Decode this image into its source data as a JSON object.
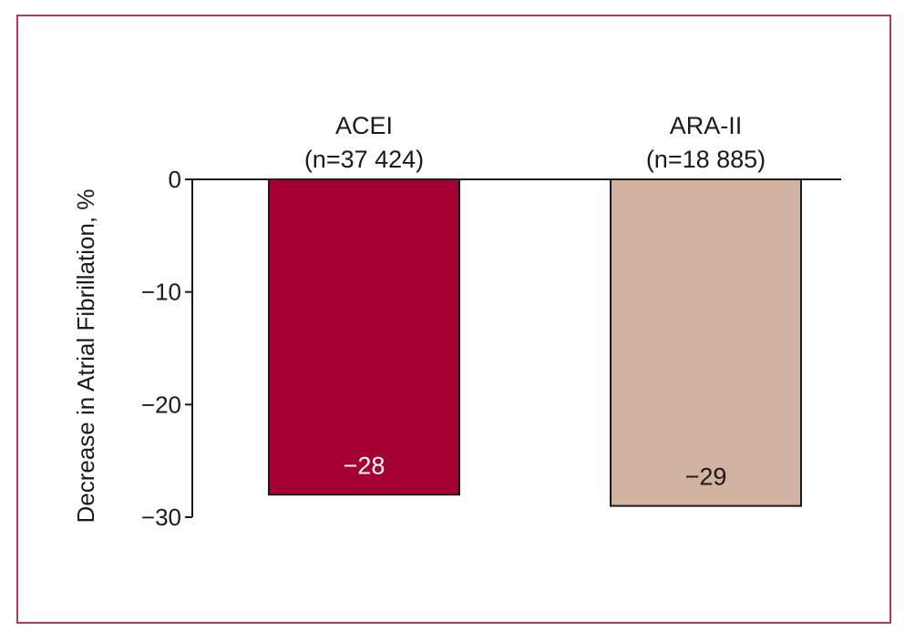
{
  "chart_data": {
    "type": "bar",
    "categories": [
      "ACEI",
      "ARA-II"
    ],
    "category_sublabels": [
      "(n=37 424)",
      "(n=18 885)"
    ],
    "values": [
      -28,
      -29
    ],
    "value_labels": [
      "−28",
      "−29"
    ],
    "ylabel": "Decrease in Atrial Fibrillation, %",
    "ylim": [
      -30,
      0
    ],
    "yticks": [
      0,
      -10,
      -20,
      -30
    ],
    "ytick_labels": [
      "0",
      "−10",
      "−20",
      "−30"
    ],
    "grid": false,
    "legend": "none",
    "bar_colors": [
      "#a50034",
      "#d1b2a1"
    ],
    "label_colors": [
      "#ffffff",
      "#1a1a1a"
    ],
    "frame_color": "#b03a5e"
  }
}
